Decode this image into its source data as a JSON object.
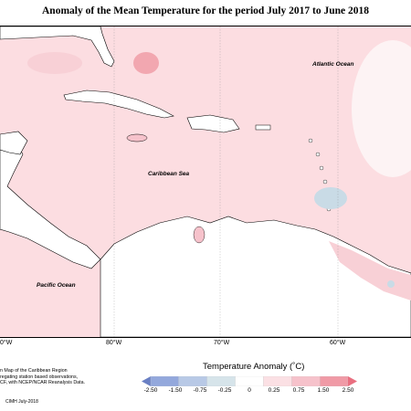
{
  "title": "Anomaly of the Mean Temperature for the period July 2017 to June 2018",
  "map_labels": {
    "atlantic": "Atlantic Ocean",
    "caribbean": "Caribbean Sea",
    "pacific": "Pacific Ocean"
  },
  "longitude_ticks": [
    "0°W",
    "80°W",
    "70°W",
    "60°W"
  ],
  "notes": [
    "n Map of the Caribbean Region",
    "regating station based observations,",
    "CF, with NCEP/NCAR Reanalysis Data."
  ],
  "credit": "CIMH July-2018",
  "legend": {
    "title": "Temperature Anomaly (˚C)",
    "labels": [
      "-2.50",
      "-1.50",
      "-0.75",
      "-0.25",
      "0",
      "0.25",
      "0.75",
      "1.50",
      "2.50"
    ],
    "colors": [
      "#6a80c4",
      "#93a8dc",
      "#b8c9e6",
      "#d6e4ea",
      "#ffffff",
      "#fbe0e4",
      "#f6c2cb",
      "#f09aa6",
      "#e96f80"
    ]
  },
  "colors": {
    "land": "#ffffff",
    "ocean_anomaly": "#fcdde1",
    "warm_spot": "#f2a7b0",
    "cool_spot": "#c9dbe6"
  }
}
